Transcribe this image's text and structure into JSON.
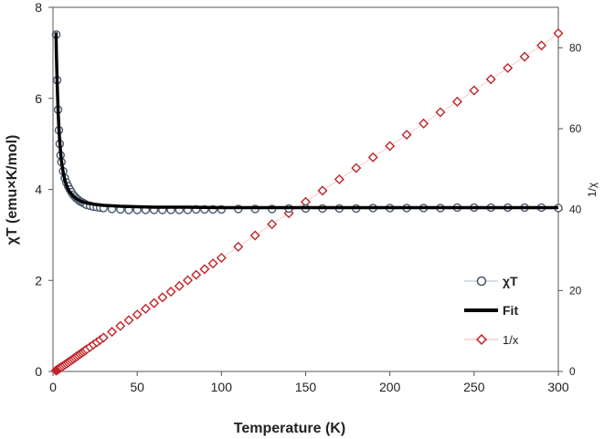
{
  "chart_data": {
    "type": "scatter",
    "xlabel": "Temperature (K)",
    "ylabel": "χT (emu×K/mol)",
    "y2label": "1/χ",
    "xlim": [
      0,
      300
    ],
    "ylim": [
      0,
      8
    ],
    "y2lim": [
      0,
      90
    ],
    "x_ticks": [
      "0",
      "50",
      "100",
      "150",
      "200",
      "250",
      "300"
    ],
    "y_ticks": [
      "0",
      "2",
      "4",
      "6",
      "8"
    ],
    "y2_ticks": [
      "0",
      "20",
      "40",
      "60",
      "80"
    ],
    "grid": false,
    "legend_position": "bottom-right",
    "series": [
      {
        "name": "χT",
        "marker": "circle",
        "axis": "left",
        "color": "#4a5a6e",
        "x": [
          1.8,
          2,
          2.5,
          3,
          3.5,
          4,
          4.5,
          5,
          6,
          7,
          8,
          9,
          10,
          11,
          12,
          13,
          14,
          15,
          16,
          17,
          18,
          19,
          20,
          22,
          24,
          26,
          28,
          30,
          35,
          40,
          45,
          50,
          55,
          60,
          65,
          70,
          75,
          80,
          85,
          90,
          95,
          100,
          110,
          120,
          130,
          140,
          150,
          160,
          170,
          180,
          190,
          200,
          210,
          220,
          230,
          240,
          250,
          260,
          270,
          280,
          290,
          300
        ],
        "y": [
          7.4,
          7.4,
          6.4,
          5.75,
          5.3,
          5.0,
          4.75,
          4.6,
          4.4,
          4.25,
          4.15,
          4.07,
          4.0,
          3.94,
          3.88,
          3.84,
          3.8,
          3.77,
          3.74,
          3.72,
          3.7,
          3.68,
          3.66,
          3.64,
          3.62,
          3.61,
          3.6,
          3.59,
          3.57,
          3.56,
          3.55,
          3.55,
          3.55,
          3.55,
          3.55,
          3.55,
          3.55,
          3.55,
          3.56,
          3.56,
          3.56,
          3.56,
          3.57,
          3.57,
          3.57,
          3.58,
          3.58,
          3.58,
          3.58,
          3.58,
          3.59,
          3.59,
          3.59,
          3.59,
          3.59,
          3.6,
          3.6,
          3.6,
          3.6,
          3.6,
          3.6,
          3.59
        ]
      },
      {
        "name": "Fit",
        "marker": "line",
        "axis": "left",
        "color": "#000000",
        "x": [
          1.8,
          2,
          2.5,
          3,
          3.5,
          4,
          4.5,
          5,
          6,
          7,
          8,
          9,
          10,
          12,
          14,
          16,
          18,
          20,
          25,
          30,
          40,
          50,
          60,
          80,
          100,
          150,
          200,
          250,
          300
        ],
        "y": [
          7.45,
          7.0,
          6.3,
          5.75,
          5.35,
          5.05,
          4.82,
          4.63,
          4.38,
          4.21,
          4.09,
          4.0,
          3.94,
          3.85,
          3.79,
          3.75,
          3.72,
          3.7,
          3.67,
          3.65,
          3.63,
          3.62,
          3.61,
          3.61,
          3.6,
          3.6,
          3.6,
          3.6,
          3.6
        ]
      },
      {
        "name": "1/x",
        "marker": "diamond",
        "axis": "right",
        "color": "#c0242a",
        "x": [
          1.8,
          2,
          2.5,
          3,
          3.5,
          4,
          4.5,
          5,
          6,
          7,
          8,
          9,
          10,
          11,
          12,
          13,
          14,
          15,
          16,
          17,
          18,
          19,
          20,
          22,
          24,
          26,
          28,
          30,
          35,
          40,
          45,
          50,
          55,
          60,
          65,
          70,
          75,
          80,
          85,
          90,
          95,
          100,
          110,
          120,
          130,
          140,
          150,
          160,
          170,
          180,
          190,
          200,
          210,
          220,
          230,
          240,
          250,
          260,
          270,
          280,
          290,
          300
        ],
        "y": [
          0.24,
          0.27,
          0.39,
          0.52,
          0.66,
          0.8,
          0.95,
          1.09,
          1.36,
          1.65,
          1.93,
          2.21,
          2.5,
          2.79,
          3.09,
          3.39,
          3.68,
          3.98,
          4.28,
          4.57,
          4.86,
          5.16,
          5.46,
          6.04,
          6.63,
          7.2,
          7.78,
          8.36,
          9.8,
          11.24,
          12.68,
          14.08,
          15.49,
          16.9,
          18.31,
          19.72,
          21.13,
          22.54,
          23.88,
          25.28,
          26.69,
          28.09,
          30.81,
          33.61,
          36.41,
          39.1,
          41.9,
          44.69,
          47.49,
          50.28,
          52.92,
          55.71,
          58.5,
          61.28,
          64.07,
          66.67,
          69.44,
          72.22,
          75.0,
          77.78,
          80.56,
          83.57
        ]
      }
    ]
  }
}
